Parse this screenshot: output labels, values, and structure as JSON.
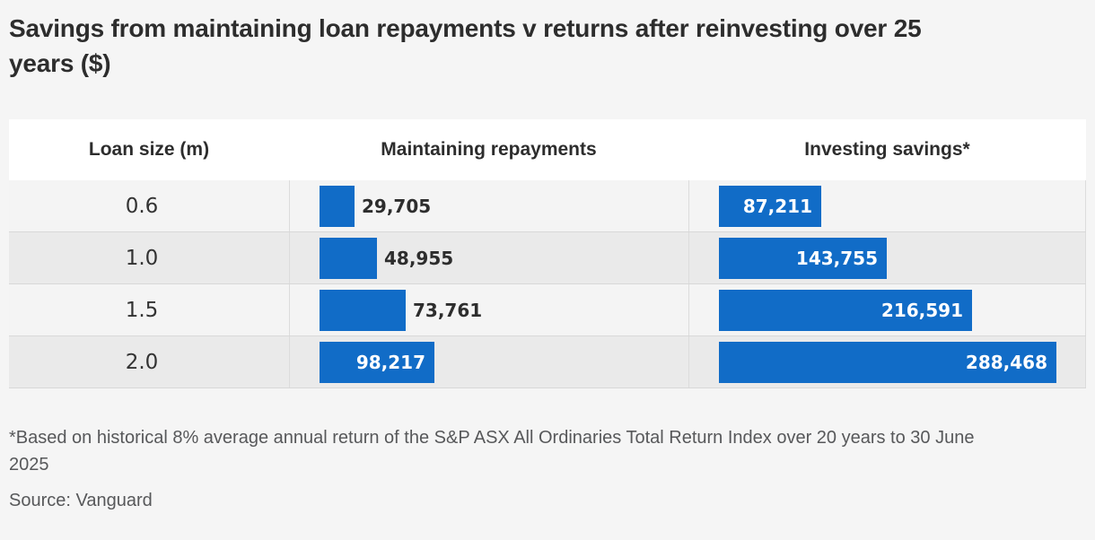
{
  "title": "Savings from maintaining loan repayments v returns after reinvesting over 25 years ($)",
  "footnote": "*Based on historical 8% average annual return of the S&P ASX All Ordinaries Total Return Index over 20 years to 30 June 2025",
  "source": "Source: Vanguard",
  "colors": {
    "bar": "#116cc7",
    "page_background": "#f5f5f5",
    "header_background": "#ffffff",
    "row_light": "#f4f4f4",
    "row_dark": "#eaeaea",
    "title_text": "#2d2d2d",
    "footnote_text": "#57585a",
    "bar_label_inside": "#ffffff",
    "bar_label_outside": "#2d2d2d"
  },
  "chart_data": {
    "type": "bar",
    "orientation": "horizontal",
    "title": "Savings from maintaining loan repayments v returns after reinvesting over 25 years ($)",
    "category_axis_label": "Loan size (m)",
    "categories": [
      "0.6",
      "1.0",
      "1.5",
      "2.0"
    ],
    "series": [
      {
        "name": "Maintaining repayments",
        "values": [
          29705,
          48955,
          73761,
          98217
        ]
      },
      {
        "name": "Investing savings*",
        "values": [
          87211,
          143755,
          216591,
          288468
        ]
      }
    ],
    "value_labels": [
      [
        "29,705",
        "48,955",
        "73,761",
        "98,217"
      ],
      [
        "87,211",
        "143,755",
        "216,591",
        "288,468"
      ]
    ],
    "xlim": [
      0,
      288468
    ],
    "legend": "none",
    "grid": "off",
    "bar_color": "#116cc7"
  }
}
